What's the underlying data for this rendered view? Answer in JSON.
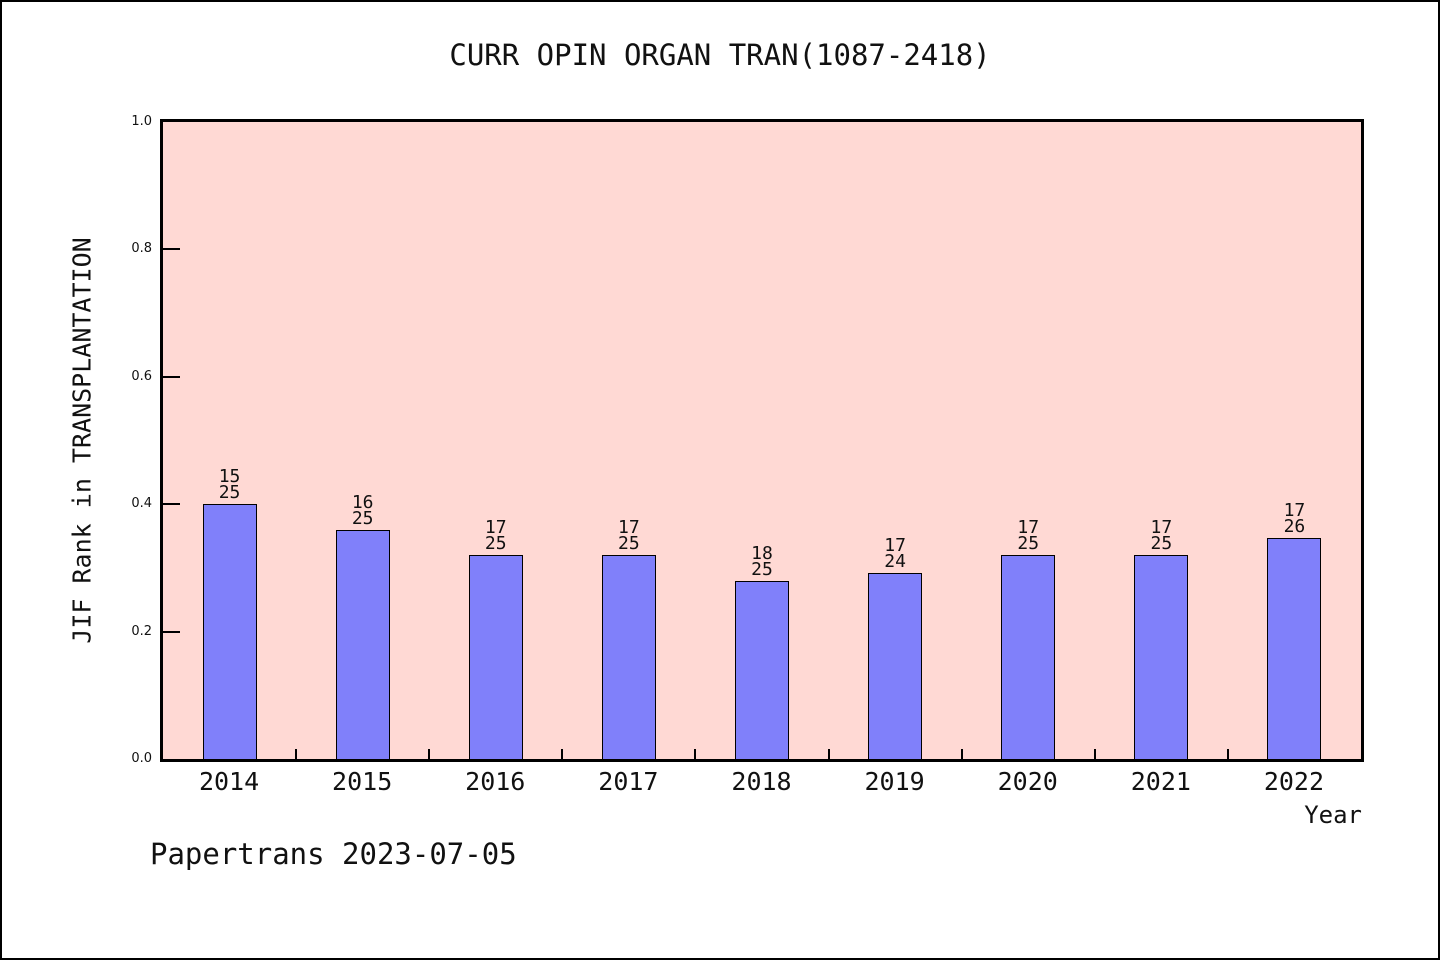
{
  "title": "CURR OPIN ORGAN TRAN(1087-2418)",
  "footer": "Papertrans 2023-07-05",
  "axes": {
    "x_label": "Year",
    "y_label": "JIF Rank in TRANSPLANTATION",
    "y_tick_labels": [
      "0.0",
      "0.2",
      "0.4",
      "0.6",
      "0.8",
      "1.0"
    ]
  },
  "colors": {
    "plot_bg": "#ffd9d4",
    "bar_fill": "#8080fa",
    "bar_border": "#000000",
    "axis": "#000000"
  },
  "chart_data": {
    "type": "bar",
    "title": "CURR OPIN ORGAN TRAN(1087-2418)",
    "xlabel": "Year",
    "ylabel": "JIF Rank in TRANSPLANTATION",
    "categories": [
      "2014",
      "2015",
      "2016",
      "2017",
      "2018",
      "2019",
      "2020",
      "2021",
      "2022"
    ],
    "values": [
      0.4,
      0.36,
      0.32,
      0.32,
      0.28,
      0.2917,
      0.32,
      0.32,
      0.3462
    ],
    "bar_labels": [
      [
        "15",
        "25"
      ],
      [
        "16",
        "25"
      ],
      [
        "17",
        "25"
      ],
      [
        "17",
        "25"
      ],
      [
        "18",
        "25"
      ],
      [
        "17",
        "24"
      ],
      [
        "17",
        "25"
      ],
      [
        "17",
        "25"
      ],
      [
        "17",
        "26"
      ]
    ],
    "ylim": [
      0,
      1
    ],
    "grid": false,
    "legend": null
  }
}
